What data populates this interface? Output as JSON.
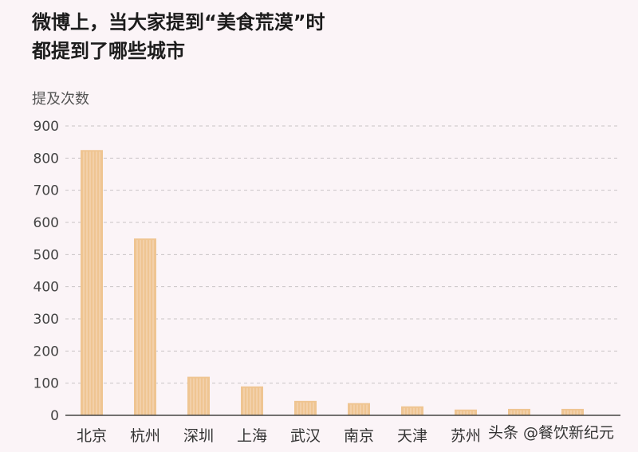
{
  "chart_data": {
    "type": "bar",
    "title_lines": [
      "微博上，当大家提到“美食荒漠”时",
      "都提到了哪些城市"
    ],
    "ylabel": "提及次数",
    "xlabel": "",
    "categories": [
      "北京",
      "杭州",
      "深圳",
      "上海",
      "武汉",
      "南京",
      "天津",
      "苏州",
      "",
      ""
    ],
    "values": [
      825,
      550,
      120,
      90,
      45,
      38,
      28,
      18,
      20,
      20
    ],
    "ylim": [
      0,
      900
    ],
    "yticks": [
      0,
      100,
      200,
      300,
      400,
      500,
      600,
      700,
      800,
      900
    ],
    "grid": true,
    "bar_color": "#efc592",
    "grid_color": "#c9c3c6"
  },
  "watermark": "头条 @餐饮新纪元"
}
